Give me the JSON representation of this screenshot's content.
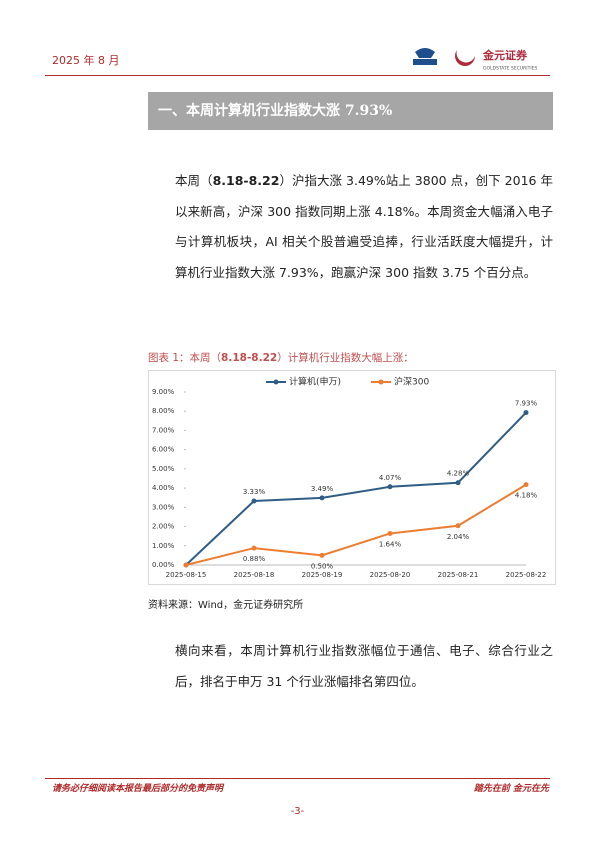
{
  "header": {
    "date": "2025 年 8 月",
    "brand": "金元证券",
    "brand_en": "GOLDSTATE SECURITIES"
  },
  "section_title": "一、本周计算机行业指数大涨 7.93%",
  "paragraph1": [
    "本周（",
    "8.18-8.22",
    "）沪指大涨 3.49%站上 3800 点，创下 2016 年以来新高，沪深 300 指数同期上涨 4.18%。本周资金大幅涌入电子与计算机板块，AI 相关个股普遍受追捧，行业活跃度大幅提升，计算机行业指数大涨 7.93%，跑赢沪深 300 指数 3.75 个百分点。"
  ],
  "figure_caption": [
    "图表 1：本周（",
    "8.18-8.22",
    "）计算机行业指数大幅上涨："
  ],
  "chart_data": {
    "type": "line",
    "categories": [
      "2025-08-15",
      "2025-08-18",
      "2025-08-19",
      "2025-08-20",
      "2025-08-21",
      "2025-08-22"
    ],
    "series": [
      {
        "name": "计算机(申万)",
        "color": "#2f5d86",
        "values": [
          0,
          3.33,
          3.49,
          4.07,
          4.28,
          7.93
        ],
        "value_labels": [
          null,
          "3.33%",
          "3.49%",
          "4.07%",
          "4.28%",
          "7.93%"
        ]
      },
      {
        "name": "沪深300",
        "color": "#ed7d31",
        "values": [
          0,
          0.88,
          0.5,
          1.64,
          2.04,
          4.18
        ],
        "value_labels": [
          null,
          "0.88%",
          "0.50%",
          "1.64%",
          "2.04%",
          "4.18%"
        ]
      }
    ],
    "ylim": [
      0,
      9
    ],
    "yticks": [
      {
        "value": 0,
        "label": "0.00%"
      },
      {
        "value": 1,
        "label": "1.00%"
      },
      {
        "value": 2,
        "label": "2.00%"
      },
      {
        "value": 3,
        "label": "3.00%"
      },
      {
        "value": 4,
        "label": "4.00%"
      },
      {
        "value": 5,
        "label": "5.00%"
      },
      {
        "value": 6,
        "label": "6.00%"
      },
      {
        "value": 7,
        "label": "7.00%"
      },
      {
        "value": 8,
        "label": "8.00%"
      },
      {
        "value": 9,
        "label": "9.00%"
      }
    ],
    "legend": "top"
  },
  "source": "资料来源：Wind，金元证券研究所",
  "paragraph2": "横向来看，本周计算机行业指数涨幅位于通信、电子、综合行业之后，排名于申万 31 个行业涨幅排名第四位。",
  "footer": {
    "disclaimer": "请务必仔细阅读本报告最后部分的免责声明",
    "slogan": "踏先在前 金元在先",
    "page": "-3-"
  }
}
